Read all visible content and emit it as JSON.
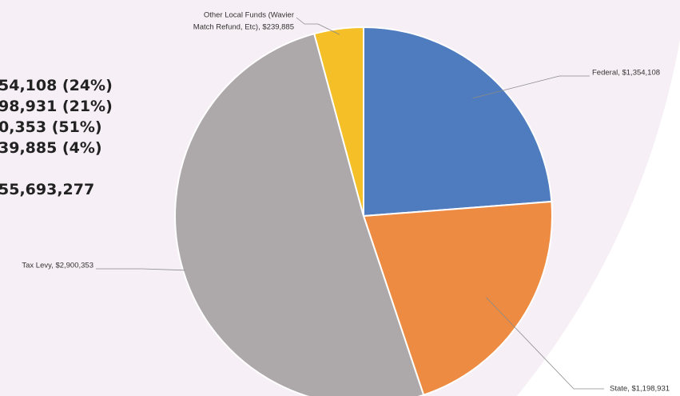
{
  "chart_data": {
    "type": "pie",
    "slices": [
      {
        "label": "Federal",
        "value": 1354108,
        "value_text": "$1,354,108",
        "color": "#4E7CBE"
      },
      {
        "label": "State",
        "value": 1198931,
        "value_text": "$1,198,931",
        "color": "#EE8B42"
      },
      {
        "label": "Tax Levy",
        "value": 2900353,
        "value_text": "$2,900,353",
        "color": "#ADA9AA"
      },
      {
        "label": "Other Local Funds (Wavier Match Refund, Etc)",
        "value": 239885,
        "value_text": "$239,885",
        "color": "#F5BF27"
      }
    ],
    "start_angle_deg": 0,
    "direction": "clockwise"
  },
  "summary": {
    "lines": [
      "54,108 (24%)",
      "98,931 (21%)",
      "0,353 (51%)",
      "39,885 (4%)"
    ],
    "total": "55,693,277"
  },
  "colors": {
    "background": "#FFFFFF",
    "panel": "#F6EFF5"
  }
}
